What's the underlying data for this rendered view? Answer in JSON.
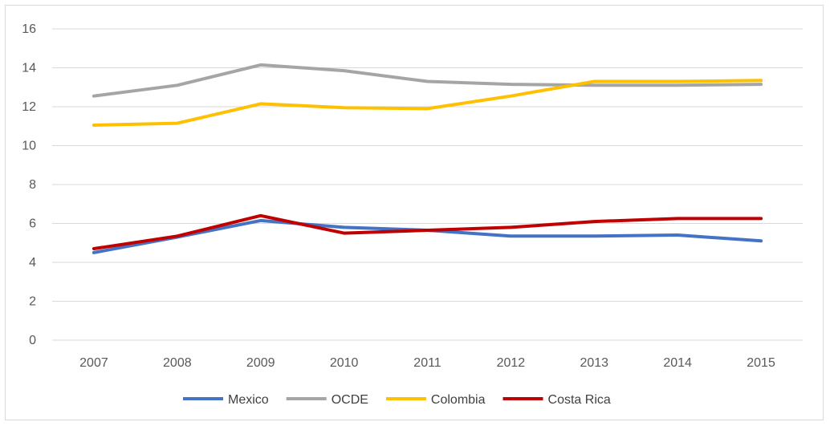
{
  "chart_data": {
    "type": "line",
    "title": "",
    "xlabel": "",
    "ylabel": "",
    "categories": [
      "2007",
      "2008",
      "2009",
      "2010",
      "2011",
      "2012",
      "2013",
      "2014",
      "2015"
    ],
    "ylim": [
      0,
      16
    ],
    "yticks": [
      0,
      2,
      4,
      6,
      8,
      10,
      12,
      14,
      16
    ],
    "grid": true,
    "legend_position": "bottom",
    "series": [
      {
        "name": "Mexico",
        "color": "#4472c4",
        "values": [
          4.5,
          5.3,
          6.15,
          5.8,
          5.65,
          5.35,
          5.35,
          5.4,
          5.1
        ]
      },
      {
        "name": "OCDE",
        "color": "#a5a5a5",
        "values": [
          12.55,
          13.1,
          14.15,
          13.85,
          13.3,
          13.15,
          13.1,
          13.1,
          13.15
        ]
      },
      {
        "name": "Colombia",
        "color": "#ffc000",
        "values": [
          11.05,
          11.15,
          12.15,
          11.95,
          11.9,
          12.55,
          13.3,
          13.3,
          13.35
        ]
      },
      {
        "name": "Costa Rica",
        "color": "#c00000",
        "values": [
          4.7,
          5.35,
          6.4,
          5.5,
          5.65,
          5.8,
          6.1,
          6.25,
          6.25
        ]
      }
    ]
  }
}
